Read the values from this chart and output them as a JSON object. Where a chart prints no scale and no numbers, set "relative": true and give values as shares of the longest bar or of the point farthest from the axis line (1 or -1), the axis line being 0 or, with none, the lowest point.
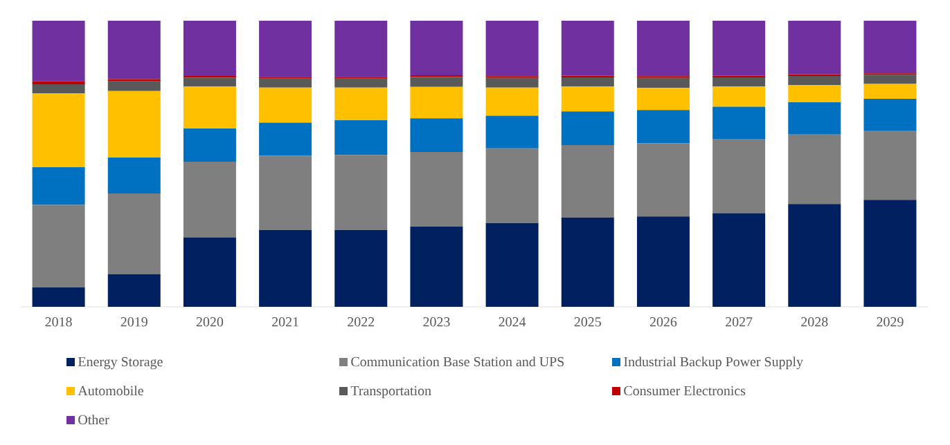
{
  "chart_data": {
    "type": "bar",
    "stacked": true,
    "relative": true,
    "legend": "bottom",
    "categories": [
      "2018",
      "2019",
      "2020",
      "2021",
      "2022",
      "2023",
      "2024",
      "2025",
      "2026",
      "2027",
      "2028",
      "2029"
    ],
    "series": [
      {
        "name": "Energy Storage",
        "color": "#002060",
        "values": [
          0.068,
          0.114,
          0.243,
          0.269,
          0.269,
          0.28,
          0.293,
          0.312,
          0.316,
          0.327,
          0.359,
          0.374
        ]
      },
      {
        "name": "Communication Base Station and UPS",
        "color": "#7f7f7f",
        "values": [
          0.288,
          0.282,
          0.264,
          0.259,
          0.262,
          0.261,
          0.261,
          0.253,
          0.256,
          0.258,
          0.243,
          0.24
        ]
      },
      {
        "name": "Industrial Backup Power Supply",
        "color": "#0070c0",
        "values": [
          0.132,
          0.126,
          0.116,
          0.116,
          0.121,
          0.118,
          0.114,
          0.118,
          0.116,
          0.114,
          0.113,
          0.113
        ]
      },
      {
        "name": "Automobile",
        "color": "#ffc000",
        "values": [
          0.258,
          0.232,
          0.147,
          0.122,
          0.114,
          0.11,
          0.098,
          0.087,
          0.077,
          0.071,
          0.06,
          0.052
        ]
      },
      {
        "name": "Transportation",
        "color": "#595959",
        "values": [
          0.032,
          0.034,
          0.031,
          0.032,
          0.032,
          0.034,
          0.034,
          0.032,
          0.035,
          0.032,
          0.032,
          0.032
        ]
      },
      {
        "name": "Consumer Electronics",
        "color": "#c00000",
        "values": [
          0.01,
          0.008,
          0.006,
          0.006,
          0.006,
          0.006,
          0.006,
          0.006,
          0.006,
          0.006,
          0.006,
          0.005
        ]
      },
      {
        "name": "Other",
        "color": "#7030a0",
        "values": [
          0.212,
          0.204,
          0.193,
          0.196,
          0.196,
          0.191,
          0.194,
          0.192,
          0.194,
          0.192,
          0.187,
          0.184
        ]
      }
    ]
  }
}
